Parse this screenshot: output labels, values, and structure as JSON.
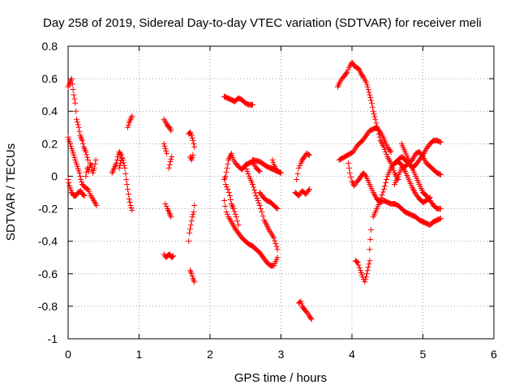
{
  "chart_data": {
    "type": "scatter",
    "title": "Day 258 of 2019, Sidereal Day-to-day VTEC variation (SDTVAR) for receiver meli",
    "xlabel": "GPS time / hours",
    "ylabel": "SDTVAR / TECUs",
    "xlim": [
      0,
      6
    ],
    "ylim": [
      -1,
      0.8
    ],
    "xticks": [
      "0",
      "1",
      "2",
      "3",
      "4",
      "5",
      "6"
    ],
    "yticks": [
      "-1",
      "-0.8",
      "-0.6",
      "-0.4",
      "-0.2",
      "0",
      "0.2",
      "0.4",
      "0.6",
      "0.8"
    ],
    "grid": true,
    "marker": "+",
    "color": "#ff0000",
    "tracks": [
      [
        [
          0.0,
          0.55
        ],
        [
          0.03,
          0.58
        ],
        [
          0.05,
          0.6
        ],
        [
          0.08,
          0.5
        ],
        [
          0.1,
          0.45
        ],
        [
          0.12,
          0.35
        ],
        [
          0.15,
          0.3
        ],
        [
          0.17,
          0.25
        ],
        [
          0.2,
          0.22
        ],
        [
          0.22,
          0.18
        ],
        [
          0.25,
          0.15
        ],
        [
          0.28,
          0.1
        ]
      ],
      [
        [
          0.0,
          0.24
        ],
        [
          0.03,
          0.2
        ],
        [
          0.05,
          0.17
        ],
        [
          0.08,
          0.13
        ],
        [
          0.1,
          0.1
        ],
        [
          0.13,
          0.06
        ],
        [
          0.16,
          0.02
        ],
        [
          0.18,
          -0.02
        ],
        [
          0.2,
          -0.05
        ],
        [
          0.24,
          -0.07
        ],
        [
          0.28,
          -0.08
        ],
        [
          0.32,
          -0.12
        ],
        [
          0.35,
          -0.14
        ],
        [
          0.4,
          -0.18
        ]
      ],
      [
        [
          0.0,
          -0.02
        ],
        [
          0.02,
          -0.06
        ],
        [
          0.05,
          -0.1
        ],
        [
          0.08,
          -0.12
        ],
        [
          0.11,
          -0.12
        ],
        [
          0.14,
          -0.1
        ],
        [
          0.18,
          -0.09
        ],
        [
          0.2,
          -0.11
        ],
        [
          0.23,
          -0.12
        ]
      ],
      [
        [
          0.25,
          0.0
        ],
        [
          0.27,
          0.05
        ],
        [
          0.29,
          0.03
        ],
        [
          0.31,
          0.08
        ],
        [
          0.33,
          0.06
        ],
        [
          0.35,
          0.02
        ],
        [
          0.37,
          0.05
        ],
        [
          0.39,
          0.1
        ]
      ],
      [
        [
          0.62,
          0.02
        ],
        [
          0.65,
          0.05
        ],
        [
          0.68,
          0.08
        ],
        [
          0.7,
          0.12
        ],
        [
          0.72,
          0.15
        ],
        [
          0.75,
          0.13
        ],
        [
          0.77,
          0.1
        ],
        [
          0.8,
          0.05
        ],
        [
          0.82,
          -0.02
        ],
        [
          0.84,
          -0.08
        ],
        [
          0.86,
          -0.14
        ],
        [
          0.88,
          -0.18
        ],
        [
          0.9,
          -0.21
        ]
      ],
      [
        [
          0.72,
          0.05
        ],
        [
          0.74,
          0.08
        ],
        [
          0.76,
          0.11
        ]
      ],
      [
        [
          0.84,
          0.3
        ],
        [
          0.86,
          0.33
        ],
        [
          0.88,
          0.35
        ],
        [
          0.9,
          0.37
        ]
      ],
      [
        [
          1.35,
          0.35
        ],
        [
          1.38,
          0.33
        ],
        [
          1.4,
          0.31
        ],
        [
          1.43,
          0.3
        ],
        [
          1.45,
          0.28
        ]
      ],
      [
        [
          1.35,
          0.2
        ],
        [
          1.37,
          0.17
        ],
        [
          1.39,
          0.14
        ]
      ],
      [
        [
          1.42,
          0.05
        ],
        [
          1.44,
          0.09
        ],
        [
          1.46,
          0.12
        ]
      ],
      [
        [
          1.37,
          -0.17
        ],
        [
          1.4,
          -0.2
        ],
        [
          1.42,
          -0.22
        ],
        [
          1.45,
          -0.25
        ]
      ],
      [
        [
          1.35,
          -0.48
        ],
        [
          1.38,
          -0.5
        ],
        [
          1.4,
          -0.49
        ],
        [
          1.43,
          -0.48
        ],
        [
          1.46,
          -0.5
        ],
        [
          1.48,
          -0.49
        ]
      ],
      [
        [
          1.7,
          0.26
        ],
        [
          1.72,
          0.27
        ],
        [
          1.74,
          0.25
        ],
        [
          1.76,
          0.22
        ],
        [
          1.78,
          0.18
        ]
      ],
      [
        [
          1.72,
          0.12
        ],
        [
          1.74,
          0.1
        ],
        [
          1.76,
          0.13
        ]
      ],
      [
        [
          1.7,
          -0.4
        ],
        [
          1.71,
          -0.35
        ],
        [
          1.73,
          -0.3
        ],
        [
          1.75,
          -0.25
        ],
        [
          1.77,
          -0.22
        ],
        [
          1.78,
          -0.18
        ]
      ],
      [
        [
          1.72,
          -0.58
        ],
        [
          1.74,
          -0.6
        ],
        [
          1.76,
          -0.63
        ],
        [
          1.78,
          -0.65
        ]
      ],
      [
        [
          2.2,
          0.49
        ],
        [
          2.25,
          0.48
        ],
        [
          2.3,
          0.47
        ],
        [
          2.35,
          0.46
        ],
        [
          2.4,
          0.48
        ],
        [
          2.45,
          0.47
        ],
        [
          2.5,
          0.45
        ],
        [
          2.55,
          0.44
        ],
        [
          2.6,
          0.44
        ]
      ],
      [
        [
          2.2,
          -0.02
        ],
        [
          2.22,
          0.0
        ],
        [
          2.24,
          0.05
        ],
        [
          2.26,
          0.1
        ],
        [
          2.28,
          0.12
        ],
        [
          2.3,
          0.14
        ],
        [
          2.33,
          0.1
        ],
        [
          2.36,
          0.08
        ],
        [
          2.4,
          0.06
        ],
        [
          2.45,
          0.04
        ],
        [
          2.5,
          0.07
        ],
        [
          2.55,
          0.08
        ],
        [
          2.6,
          0.09
        ],
        [
          2.65,
          0.05
        ],
        [
          2.7,
          0.03
        ]
      ],
      [
        [
          2.2,
          -0.15
        ],
        [
          2.23,
          -0.22
        ],
        [
          2.26,
          -0.25
        ],
        [
          2.3,
          -0.28
        ],
        [
          2.35,
          -0.32
        ],
        [
          2.4,
          -0.35
        ],
        [
          2.45,
          -0.38
        ],
        [
          2.5,
          -0.4
        ],
        [
          2.55,
          -0.42
        ],
        [
          2.6,
          -0.43
        ],
        [
          2.65,
          -0.45
        ],
        [
          2.7,
          -0.47
        ],
        [
          2.75,
          -0.5
        ],
        [
          2.8,
          -0.53
        ],
        [
          2.85,
          -0.55
        ],
        [
          2.9,
          -0.55
        ],
        [
          2.95,
          -0.5
        ]
      ],
      [
        [
          2.22,
          -0.05
        ],
        [
          2.25,
          -0.08
        ],
        [
          2.28,
          -0.12
        ],
        [
          2.3,
          -0.17
        ],
        [
          2.33,
          -0.2
        ],
        [
          2.37,
          -0.25
        ],
        [
          2.4,
          -0.3
        ]
      ],
      [
        [
          2.5,
          0.06
        ],
        [
          2.55,
          0.0
        ],
        [
          2.6,
          -0.05
        ],
        [
          2.65,
          -0.12
        ],
        [
          2.7,
          -0.18
        ],
        [
          2.73,
          -0.22
        ],
        [
          2.76,
          -0.27
        ],
        [
          2.8,
          -0.3
        ],
        [
          2.83,
          -0.33
        ],
        [
          2.86,
          -0.35
        ],
        [
          2.9,
          -0.38
        ],
        [
          2.95,
          -0.45
        ]
      ],
      [
        [
          2.6,
          0.1
        ],
        [
          2.7,
          0.09
        ],
        [
          2.8,
          0.06
        ],
        [
          2.9,
          0.04
        ],
        [
          3.0,
          0.02
        ]
      ],
      [
        [
          2.7,
          -0.1
        ],
        [
          2.75,
          -0.13
        ],
        [
          2.8,
          -0.15
        ],
        [
          2.85,
          -0.16
        ],
        [
          2.9,
          -0.18
        ],
        [
          2.95,
          -0.2
        ]
      ],
      [
        [
          2.88,
          0.1
        ],
        [
          2.9,
          0.07
        ],
        [
          2.92,
          0.05
        ],
        [
          2.95,
          0.03
        ]
      ],
      [
        [
          3.2,
          -0.1
        ],
        [
          3.25,
          -0.12
        ],
        [
          3.3,
          -0.09
        ],
        [
          3.35,
          -0.11
        ],
        [
          3.4,
          -0.08
        ]
      ],
      [
        [
          3.22,
          -0.02
        ],
        [
          3.25,
          0.05
        ],
        [
          3.28,
          0.08
        ],
        [
          3.3,
          0.1
        ],
        [
          3.33,
          0.12
        ],
        [
          3.36,
          0.14
        ],
        [
          3.4,
          0.13
        ]
      ],
      [
        [
          3.25,
          -0.78
        ],
        [
          3.28,
          -0.77
        ],
        [
          3.3,
          -0.8
        ],
        [
          3.33,
          -0.82
        ],
        [
          3.37,
          -0.84
        ],
        [
          3.4,
          -0.86
        ],
        [
          3.43,
          -0.88
        ]
      ],
      [
        [
          3.8,
          0.55
        ],
        [
          3.83,
          0.58
        ],
        [
          3.86,
          0.6
        ],
        [
          3.9,
          0.62
        ],
        [
          3.93,
          0.64
        ],
        [
          3.96,
          0.67
        ],
        [
          4.0,
          0.7
        ],
        [
          4.03,
          0.68
        ],
        [
          4.06,
          0.67
        ],
        [
          4.1,
          0.66
        ],
        [
          4.13,
          0.63
        ],
        [
          4.16,
          0.61
        ],
        [
          4.2,
          0.58
        ],
        [
          4.22,
          0.55
        ],
        [
          4.25,
          0.5
        ],
        [
          4.28,
          0.45
        ],
        [
          4.3,
          0.4
        ],
        [
          4.33,
          0.35
        ],
        [
          4.37,
          0.28
        ],
        [
          4.4,
          0.22
        ],
        [
          4.45,
          0.18
        ],
        [
          4.5,
          0.12
        ],
        [
          4.55,
          0.08
        ],
        [
          4.6,
          0.02
        ],
        [
          4.65,
          -0.02
        ]
      ],
      [
        [
          3.82,
          0.1
        ],
        [
          3.86,
          0.11
        ],
        [
          3.9,
          0.12
        ],
        [
          3.94,
          0.13
        ],
        [
          3.98,
          0.14
        ],
        [
          4.02,
          0.15
        ],
        [
          4.06,
          0.18
        ],
        [
          4.1,
          0.2
        ],
        [
          4.15,
          0.22
        ],
        [
          4.2,
          0.25
        ],
        [
          4.25,
          0.28
        ],
        [
          4.3,
          0.29
        ],
        [
          4.35,
          0.3
        ],
        [
          4.4,
          0.27
        ],
        [
          4.45,
          0.23
        ],
        [
          4.5,
          0.18
        ],
        [
          4.55,
          0.15
        ]
      ],
      [
        [
          3.95,
          0.08
        ],
        [
          3.97,
          0.02
        ],
        [
          4.0,
          -0.03
        ],
        [
          4.03,
          -0.06
        ],
        [
          4.06,
          -0.04
        ],
        [
          4.1,
          -0.02
        ],
        [
          4.13,
          0.0
        ],
        [
          4.16,
          0.02
        ],
        [
          4.2,
          0.0
        ],
        [
          4.25,
          -0.05
        ],
        [
          4.3,
          -0.1
        ],
        [
          4.35,
          -0.14
        ],
        [
          4.4,
          -0.16
        ],
        [
          4.45,
          -0.15
        ],
        [
          4.5,
          -0.16
        ],
        [
          4.55,
          -0.17
        ],
        [
          4.6,
          -0.17
        ],
        [
          4.65,
          -0.18
        ],
        [
          4.7,
          -0.2
        ],
        [
          4.75,
          -0.22
        ],
        [
          4.8,
          -0.23
        ],
        [
          4.85,
          -0.24
        ],
        [
          4.9,
          -0.25
        ],
        [
          4.95,
          -0.27
        ],
        [
          5.0,
          -0.28
        ],
        [
          5.05,
          -0.29
        ],
        [
          5.1,
          -0.3
        ],
        [
          5.15,
          -0.28
        ],
        [
          5.2,
          -0.27
        ],
        [
          5.25,
          -0.26
        ]
      ],
      [
        [
          4.05,
          -0.52
        ],
        [
          4.08,
          -0.53
        ],
        [
          4.12,
          -0.58
        ],
        [
          4.15,
          -0.62
        ],
        [
          4.18,
          -0.65
        ],
        [
          4.2,
          -0.62
        ],
        [
          4.22,
          -0.58
        ],
        [
          4.25,
          -0.52
        ]
      ],
      [
        [
          4.25,
          -0.45
        ],
        [
          4.27,
          -0.33
        ]
      ],
      [
        [
          4.3,
          -0.25
        ],
        [
          4.35,
          -0.2
        ],
        [
          4.4,
          -0.15
        ],
        [
          4.45,
          -0.08
        ],
        [
          4.5,
          0.0
        ],
        [
          4.55,
          0.05
        ],
        [
          4.6,
          0.08
        ],
        [
          4.65,
          0.1
        ],
        [
          4.7,
          0.12
        ],
        [
          4.75,
          0.1
        ],
        [
          4.8,
          0.08
        ],
        [
          4.85,
          0.05
        ],
        [
          4.9,
          0.07
        ],
        [
          4.95,
          0.1
        ],
        [
          5.0,
          0.13
        ],
        [
          5.05,
          0.17
        ],
        [
          5.1,
          0.2
        ],
        [
          5.15,
          0.22
        ],
        [
          5.2,
          0.22
        ],
        [
          5.25,
          0.21
        ]
      ],
      [
        [
          4.6,
          -0.05
        ],
        [
          4.65,
          0.0
        ],
        [
          4.7,
          0.05
        ],
        [
          4.75,
          0.06
        ],
        [
          4.8,
          0.08
        ],
        [
          4.85,
          0.1
        ],
        [
          4.9,
          0.14
        ],
        [
          4.95,
          0.15
        ],
        [
          5.0,
          0.12
        ],
        [
          5.05,
          0.08
        ],
        [
          5.1,
          0.06
        ],
        [
          5.15,
          0.04
        ],
        [
          5.2,
          0.02
        ],
        [
          5.25,
          0.01
        ]
      ],
      [
        [
          4.7,
          0.2
        ],
        [
          4.75,
          0.15
        ],
        [
          4.8,
          0.1
        ],
        [
          4.85,
          0.05
        ],
        [
          4.9,
          0.0
        ],
        [
          4.95,
          -0.05
        ],
        [
          5.0,
          -0.1
        ],
        [
          5.05,
          -0.12
        ],
        [
          5.1,
          -0.15
        ],
        [
          5.15,
          -0.18
        ],
        [
          5.2,
          -0.2
        ],
        [
          5.25,
          -0.2
        ]
      ],
      [
        [
          4.6,
          0.08
        ],
        [
          4.65,
          0.09
        ],
        [
          4.7,
          0.07
        ],
        [
          4.75,
          0.03
        ],
        [
          4.8,
          -0.02
        ],
        [
          4.85,
          -0.07
        ],
        [
          4.9,
          -0.11
        ],
        [
          4.95,
          -0.14
        ],
        [
          5.0,
          -0.16
        ],
        [
          5.05,
          -0.15
        ],
        [
          5.1,
          -0.13
        ]
      ]
    ]
  }
}
